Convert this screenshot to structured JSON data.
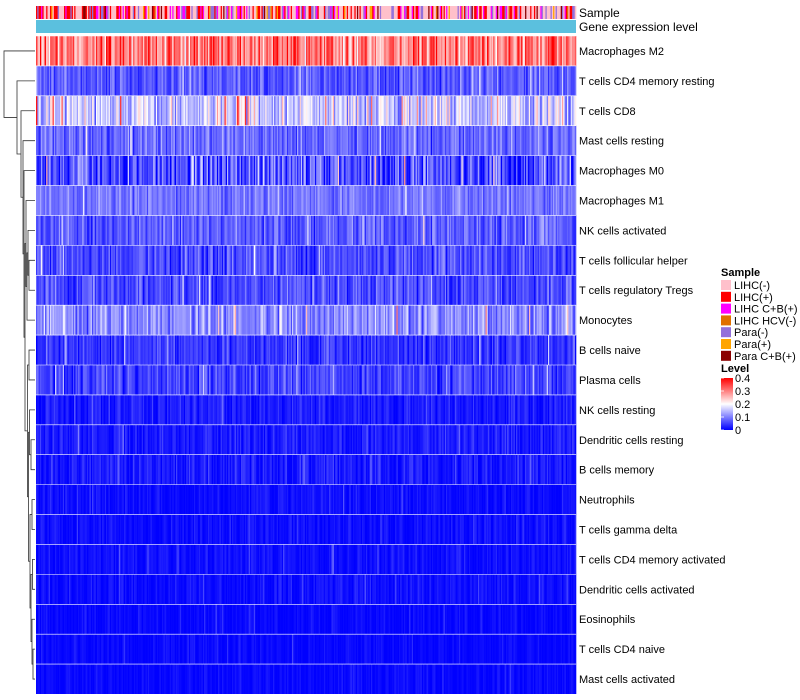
{
  "chart_data": {
    "type": "heatmap",
    "title": "",
    "annotation_tracks": [
      "Sample",
      "Gene expression level"
    ],
    "rows": [
      {
        "name": "Macrophages M2",
        "mean": 0.3,
        "spread": 0.1
      },
      {
        "name": "T cells CD4 memory resting",
        "mean": 0.07,
        "spread": 0.05
      },
      {
        "name": "T cells CD8",
        "mean": 0.16,
        "spread": 0.09
      },
      {
        "name": "Mast cells resting",
        "mean": 0.08,
        "spread": 0.05
      },
      {
        "name": "Macrophages M0",
        "mean": 0.06,
        "spread": 0.09
      },
      {
        "name": "Macrophages M1",
        "mean": 0.09,
        "spread": 0.04
      },
      {
        "name": "NK cells activated",
        "mean": 0.07,
        "spread": 0.05
      },
      {
        "name": "T cells follicular helper",
        "mean": 0.06,
        "spread": 0.05
      },
      {
        "name": "T cells regulatory  Tregs",
        "mean": 0.06,
        "spread": 0.05
      },
      {
        "name": "Monocytes",
        "mean": 0.11,
        "spread": 0.06
      },
      {
        "name": "B cells naive",
        "mean": 0.04,
        "spread": 0.04
      },
      {
        "name": "Plasma cells",
        "mean": 0.05,
        "spread": 0.05
      },
      {
        "name": "NK cells resting",
        "mean": 0.02,
        "spread": 0.03
      },
      {
        "name": "Dendritic cells resting",
        "mean": 0.02,
        "spread": 0.03
      },
      {
        "name": "B cells memory",
        "mean": 0.02,
        "spread": 0.03
      },
      {
        "name": "Neutrophils",
        "mean": 0.01,
        "spread": 0.02
      },
      {
        "name": "T cells gamma delta",
        "mean": 0.01,
        "spread": 0.02
      },
      {
        "name": "T cells CD4 memory activated",
        "mean": 0.01,
        "spread": 0.02
      },
      {
        "name": "Dendritic cells activated",
        "mean": 0.01,
        "spread": 0.02
      },
      {
        "name": "Eosinophils",
        "mean": 0.005,
        "spread": 0.015
      },
      {
        "name": "T cells CD4 naive",
        "mean": 0.005,
        "spread": 0.015
      },
      {
        "name": "Mast cells activated",
        "mean": 0.005,
        "spread": 0.015
      }
    ],
    "n_columns": 424,
    "sample_mix": [
      0.42,
      0.22,
      0.14,
      0.02,
      0.12,
      0.05,
      0.03
    ],
    "gene_expression_track_color": "#5bc0de",
    "legends": {
      "sample": {
        "title": "Sample",
        "entries": [
          {
            "label": "LIHC(-)",
            "color": "#ffc0cb"
          },
          {
            "label": "LIHC(+)",
            "color": "#ff0000"
          },
          {
            "label": "LIHC C+B(+)",
            "color": "#ff00ff"
          },
          {
            "label": "LIHC HCV(-)",
            "color": "#e07000"
          },
          {
            "label": "Para(-)",
            "color": "#9370db"
          },
          {
            "label": "Para(+)",
            "color": "#ffa500"
          },
          {
            "label": "Para C+B(+)",
            "color": "#8b0000"
          }
        ]
      },
      "level": {
        "title": "Level",
        "ticks": [
          "0.4",
          "0.3",
          "0.2",
          "0.1",
          "0"
        ],
        "range": [
          0,
          0.4
        ],
        "colors": [
          "#0000ff",
          "#ffffff",
          "#ff0000"
        ]
      }
    }
  }
}
